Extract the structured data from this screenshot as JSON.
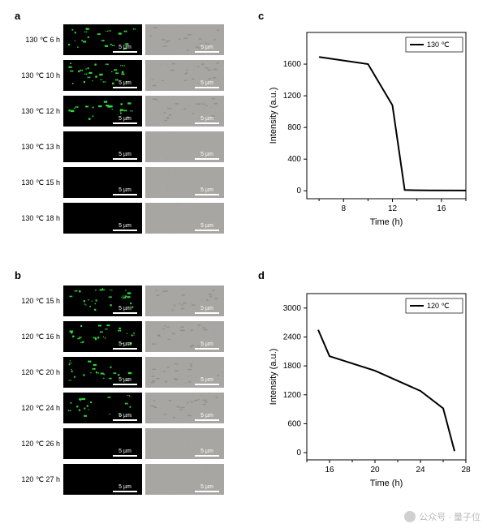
{
  "labels": {
    "a": "a",
    "b": "b",
    "c": "c",
    "d": "d"
  },
  "panel_a": {
    "rows": [
      {
        "temp": "130 ℃",
        "time": "6 h",
        "fluor": true,
        "fluor_density": 25
      },
      {
        "temp": "130 ℃",
        "time": "10 h",
        "fluor": true,
        "fluor_density": 30
      },
      {
        "temp": "130 ℃",
        "time": "12 h",
        "fluor": true,
        "fluor_density": 22
      },
      {
        "temp": "130 ℃",
        "time": "13 h",
        "fluor": false,
        "fluor_density": 0
      },
      {
        "temp": "130 ℃",
        "time": "15 h",
        "fluor": false,
        "fluor_density": 0
      },
      {
        "temp": "130 ℃",
        "time": "18 h",
        "fluor": false,
        "fluor_density": 0
      }
    ],
    "scalebar": "5 µm"
  },
  "panel_b": {
    "rows": [
      {
        "temp": "120 ℃",
        "time": "15 h",
        "fluor": true,
        "fluor_density": 28
      },
      {
        "temp": "120 ℃",
        "time": "16 h",
        "fluor": true,
        "fluor_density": 26
      },
      {
        "temp": "120 ℃",
        "time": "20 h",
        "fluor": true,
        "fluor_density": 24
      },
      {
        "temp": "120 ℃",
        "time": "24 h",
        "fluor": true,
        "fluor_density": 20
      },
      {
        "temp": "120 ℃",
        "time": "26 h",
        "fluor": false,
        "fluor_density": 0
      },
      {
        "temp": "120 ℃",
        "time": "27 h",
        "fluor": false,
        "fluor_density": 0
      }
    ],
    "scalebar": "5 µm"
  },
  "chart_c": {
    "type": "line",
    "legend": "130 ℃",
    "xlabel": "Time (h)",
    "ylabel": "Intensity (a.u.)",
    "xlim": [
      5,
      18
    ],
    "ylim": [
      -100,
      2000
    ],
    "yticks": [
      0,
      400,
      800,
      1200,
      1600
    ],
    "xticks": [
      8,
      12,
      16
    ],
    "xminor": [
      6,
      10,
      14,
      18
    ],
    "points": [
      {
        "x": 6,
        "y": 1690
      },
      {
        "x": 10,
        "y": 1600
      },
      {
        "x": 12,
        "y": 1080
      },
      {
        "x": 13,
        "y": 10
      },
      {
        "x": 15,
        "y": 5
      },
      {
        "x": 18,
        "y": 3
      }
    ],
    "line_color": "#000000",
    "line_width": 2,
    "background_color": "#ffffff",
    "tick_color": "#000000",
    "label_fontsize": 11,
    "tick_fontsize": 10
  },
  "chart_d": {
    "type": "line",
    "legend": "120 ℃",
    "xlabel": "Time (h)",
    "ylabel": "Intensity (a.u.)",
    "xlim": [
      14,
      28
    ],
    "ylim": [
      -150,
      3300
    ],
    "yticks": [
      0,
      600,
      1200,
      1800,
      2400,
      3000
    ],
    "xticks": [
      16,
      20,
      24,
      28
    ],
    "xminor": [
      14,
      18,
      22,
      26
    ],
    "points": [
      {
        "x": 15,
        "y": 2550
      },
      {
        "x": 16,
        "y": 2000
      },
      {
        "x": 20,
        "y": 1700
      },
      {
        "x": 24,
        "y": 1280
      },
      {
        "x": 26,
        "y": 920
      },
      {
        "x": 27,
        "y": 30
      }
    ],
    "line_color": "#000000",
    "line_width": 2,
    "background_color": "#ffffff",
    "tick_color": "#000000",
    "label_fontsize": 11,
    "tick_fontsize": 10
  },
  "watermark": "公众号 · 量子位",
  "colors": {
    "fluor_dot": "#2fd83a",
    "gray_bg": "#a8a6a2",
    "dark_bg": "#000000"
  }
}
